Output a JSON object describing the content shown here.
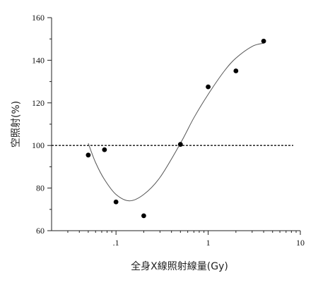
{
  "chart_data": {
    "type": "scatter",
    "xlabel": "全身X線照射線量(Gy)",
    "ylabel": "空照射(%)",
    "xscale": "log",
    "xlim": [
      0.02,
      10
    ],
    "ylim": [
      60,
      160
    ],
    "x_ticks": [
      {
        "value": 0.1,
        "label": ".1"
      },
      {
        "value": 1,
        "label": "1"
      },
      {
        "value": 10,
        "label": "10"
      }
    ],
    "y_ticks": [
      60,
      80,
      100,
      120,
      140,
      160
    ],
    "reference_line": {
      "y": 100,
      "style": "dotted"
    },
    "grid": false,
    "legend": "none",
    "points": [
      {
        "x": 0.05,
        "y": 95.5
      },
      {
        "x": 0.075,
        "y": 98
      },
      {
        "x": 0.1,
        "y": 73.5
      },
      {
        "x": 0.2,
        "y": 67
      },
      {
        "x": 0.5,
        "y": 100.5
      },
      {
        "x": 1,
        "y": 127.5
      },
      {
        "x": 2,
        "y": 135
      },
      {
        "x": 4,
        "y": 149
      }
    ],
    "fit_curve": [
      {
        "x": 0.05,
        "y": 101
      },
      {
        "x": 0.06,
        "y": 92
      },
      {
        "x": 0.075,
        "y": 84
      },
      {
        "x": 0.1,
        "y": 77
      },
      {
        "x": 0.14,
        "y": 74
      },
      {
        "x": 0.2,
        "y": 77
      },
      {
        "x": 0.3,
        "y": 85
      },
      {
        "x": 0.5,
        "y": 101
      },
      {
        "x": 0.7,
        "y": 113
      },
      {
        "x": 1,
        "y": 124
      },
      {
        "x": 1.5,
        "y": 135
      },
      {
        "x": 2,
        "y": 141
      },
      {
        "x": 3,
        "y": 146.5
      },
      {
        "x": 4,
        "y": 148
      }
    ]
  }
}
